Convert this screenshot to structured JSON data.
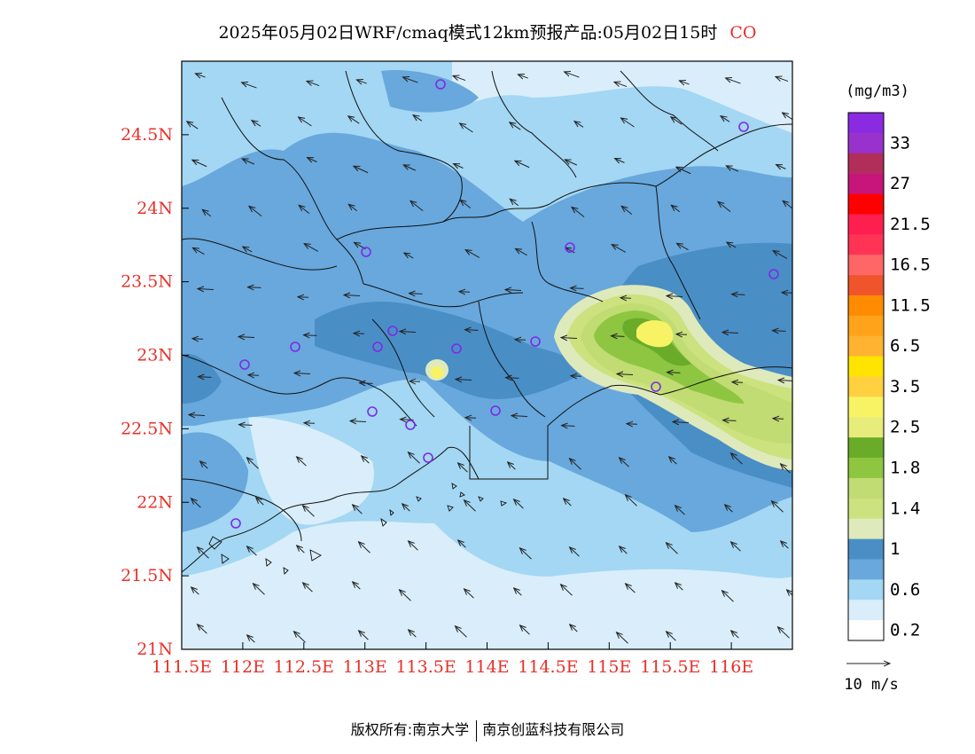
{
  "title": {
    "main": "2025年05月02日WRF/cmaq模式12km预报产品:05月02日15时",
    "pollutant": "CO"
  },
  "axes": {
    "x_ticks": [
      "111.5E",
      "112E",
      "112.5E",
      "113E",
      "113.5E",
      "114E",
      "114.5E",
      "115E",
      "115.5E",
      "116E"
    ],
    "y_ticks": [
      "21N",
      "21.5N",
      "22N",
      "22.5N",
      "23N",
      "23.5N",
      "24N",
      "24.5N"
    ],
    "x_range": [
      111.5,
      116.5
    ],
    "y_range": [
      21.0,
      25.0
    ],
    "tick_color": "#e8312a"
  },
  "legend": {
    "unit": "(mg/m3)",
    "labels": [
      "33",
      "27",
      "21.5",
      "16.5",
      "11.5",
      "6.5",
      "3.5",
      "2.5",
      "1.8",
      "1.4",
      "1",
      "0.6",
      "0.2"
    ],
    "colors_top_to_bottom": [
      "#8a2be2",
      "#9932cc",
      "#b22e5a",
      "#c7157c",
      "#ff0000",
      "#ff1f4f",
      "#ff3355",
      "#ff6666",
      "#f0542a",
      "#ff8c00",
      "#ffa31a",
      "#ffb330",
      "#ffe400",
      "#ffd040",
      "#f7f365",
      "#e8ec7a",
      "#6aac2a",
      "#8ec641",
      "#c0dc72",
      "#cbe27e",
      "#dfeabc",
      "#4a8ec6",
      "#68a8dc",
      "#a3d7f3",
      "#d9eefa",
      "#ffffff"
    ]
  },
  "wind_scale": {
    "label": "10 m/s"
  },
  "stations": {
    "marker": "circle",
    "color": "#7d2ae8"
  },
  "footer": {
    "left": "版权所有:南京大学",
    "right": "南京创蓝科技有限公司"
  }
}
